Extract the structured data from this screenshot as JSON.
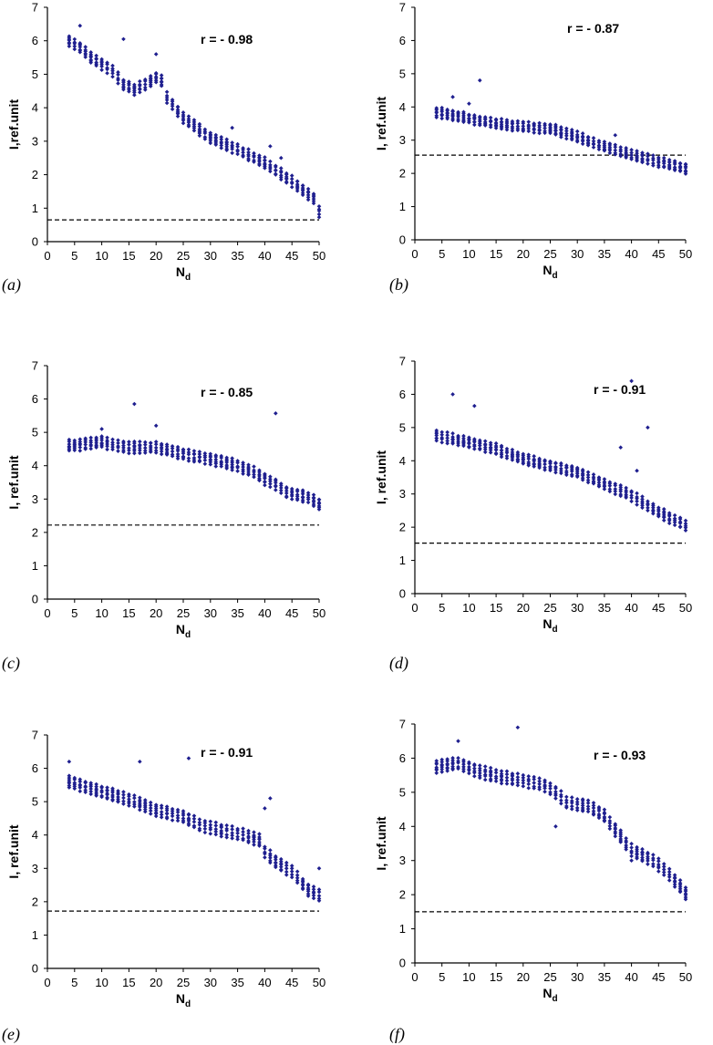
{
  "colors": {
    "marker": "#1F1F8F",
    "axis": "#000000",
    "reference_line": "#000000"
  },
  "chart_data": [
    {
      "panel_label": "(a)",
      "type": "scatter",
      "r_label": "r = - 0.98",
      "xlabel_main": "N",
      "xlabel_sub": "d",
      "ylabel": "I,ref.unit",
      "xlim": [
        0,
        50
      ],
      "ylim": [
        0,
        7
      ],
      "xticks": [
        0,
        5,
        10,
        15,
        20,
        25,
        30,
        35,
        40,
        45,
        50
      ],
      "yticks": [
        0,
        1,
        2,
        3,
        4,
        5,
        6,
        7
      ],
      "reference_y": 0.65,
      "trend": [
        [
          4,
          6.0
        ],
        [
          6,
          5.8
        ],
        [
          8,
          5.5
        ],
        [
          10,
          5.3
        ],
        [
          12,
          5.1
        ],
        [
          14,
          4.7
        ],
        [
          16,
          4.55
        ],
        [
          18,
          4.7
        ],
        [
          20,
          4.9
        ],
        [
          21,
          4.8
        ],
        [
          22,
          4.3
        ],
        [
          25,
          3.7
        ],
        [
          30,
          3.1
        ],
        [
          35,
          2.75
        ],
        [
          40,
          2.35
        ],
        [
          45,
          1.8
        ],
        [
          49,
          1.3
        ],
        [
          50,
          0.9
        ]
      ],
      "spread": 0.15,
      "outliers": [
        [
          6,
          6.45
        ],
        [
          14,
          6.05
        ],
        [
          20,
          5.6
        ],
        [
          34,
          3.4
        ],
        [
          41,
          2.85
        ],
        [
          43,
          2.5
        ]
      ]
    },
    {
      "panel_label": "(b)",
      "type": "scatter",
      "r_label": "r = - 0.87",
      "xlabel_main": "N",
      "xlabel_sub": "d",
      "ylabel": "I, ref.unit",
      "xlim": [
        0,
        50
      ],
      "ylim": [
        0,
        7
      ],
      "xticks": [
        0,
        5,
        10,
        15,
        20,
        25,
        30,
        35,
        40,
        45,
        50
      ],
      "yticks": [
        0,
        1,
        2,
        3,
        4,
        5,
        6,
        7
      ],
      "reference_y": 2.55,
      "trend": [
        [
          4,
          3.85
        ],
        [
          10,
          3.65
        ],
        [
          15,
          3.5
        ],
        [
          20,
          3.4
        ],
        [
          25,
          3.35
        ],
        [
          30,
          3.1
        ],
        [
          35,
          2.8
        ],
        [
          40,
          2.55
        ],
        [
          45,
          2.35
        ],
        [
          50,
          2.15
        ]
      ],
      "spread": 0.14,
      "outliers": [
        [
          12,
          4.8
        ],
        [
          7,
          4.3
        ],
        [
          10,
          4.1
        ],
        [
          37,
          3.15
        ]
      ]
    },
    {
      "panel_label": "(c)",
      "type": "scatter",
      "r_label": "r = - 0.85",
      "xlabel_main": "N",
      "xlabel_sub": "d",
      "ylabel": "I, ref.unit",
      "xlim": [
        0,
        50
      ],
      "ylim": [
        0,
        7
      ],
      "xticks": [
        0,
        5,
        10,
        15,
        20,
        25,
        30,
        35,
        40,
        45,
        50
      ],
      "yticks": [
        0,
        1,
        2,
        3,
        4,
        5,
        6,
        7
      ],
      "reference_y": 2.22,
      "trend": [
        [
          4,
          4.6
        ],
        [
          10,
          4.7
        ],
        [
          15,
          4.55
        ],
        [
          20,
          4.55
        ],
        [
          25,
          4.35
        ],
        [
          30,
          4.2
        ],
        [
          35,
          4.0
        ],
        [
          38,
          3.8
        ],
        [
          40,
          3.6
        ],
        [
          42,
          3.45
        ],
        [
          44,
          3.2
        ],
        [
          48,
          3.05
        ],
        [
          50,
          2.85
        ]
      ],
      "spread": 0.16,
      "outliers": [
        [
          16,
          5.85
        ],
        [
          42,
          5.57
        ],
        [
          20,
          5.2
        ],
        [
          10,
          5.1
        ]
      ]
    },
    {
      "panel_label": "(d)",
      "type": "scatter",
      "r_label": "r = - 0.91",
      "xlabel_main": "N",
      "xlabel_sub": "d",
      "ylabel": "I, ref.unit",
      "xlim": [
        0,
        50
      ],
      "ylim": [
        0,
        7
      ],
      "xticks": [
        0,
        5,
        10,
        15,
        20,
        25,
        30,
        35,
        40,
        45,
        50
      ],
      "yticks": [
        0,
        1,
        2,
        3,
        4,
        5,
        6,
        7
      ],
      "reference_y": 1.52,
      "trend": [
        [
          4,
          4.75
        ],
        [
          10,
          4.55
        ],
        [
          15,
          4.35
        ],
        [
          20,
          4.05
        ],
        [
          25,
          3.85
        ],
        [
          30,
          3.65
        ],
        [
          35,
          3.3
        ],
        [
          40,
          2.95
        ],
        [
          45,
          2.45
        ],
        [
          50,
          2.05
        ]
      ],
      "spread": 0.15,
      "outliers": [
        [
          7,
          6.0
        ],
        [
          11,
          5.65
        ],
        [
          40,
          6.4
        ],
        [
          43,
          5.0
        ],
        [
          38,
          4.4
        ],
        [
          41,
          3.7
        ]
      ]
    },
    {
      "panel_label": "(e)",
      "type": "scatter",
      "r_label": "r = - 0.91",
      "xlabel_main": "N",
      "xlabel_sub": "d",
      "ylabel": "I, ref.unit",
      "xlim": [
        0,
        50
      ],
      "ylim": [
        0,
        7
      ],
      "xticks": [
        0,
        5,
        10,
        15,
        20,
        25,
        30,
        35,
        40,
        45,
        50
      ],
      "yticks": [
        0,
        1,
        2,
        3,
        4,
        5,
        6,
        7
      ],
      "reference_y": 1.72,
      "trend": [
        [
          4,
          5.6
        ],
        [
          8,
          5.4
        ],
        [
          12,
          5.2
        ],
        [
          16,
          5.0
        ],
        [
          20,
          4.75
        ],
        [
          25,
          4.55
        ],
        [
          28,
          4.3
        ],
        [
          32,
          4.15
        ],
        [
          36,
          4.0
        ],
        [
          39,
          3.85
        ],
        [
          40,
          3.5
        ],
        [
          42,
          3.2
        ],
        [
          45,
          2.9
        ],
        [
          48,
          2.35
        ],
        [
          50,
          2.2
        ]
      ],
      "spread": 0.17,
      "outliers": [
        [
          17,
          6.2
        ],
        [
          26,
          6.3
        ],
        [
          41,
          5.1
        ],
        [
          40,
          4.8
        ],
        [
          50,
          3.0
        ],
        [
          4,
          6.2
        ]
      ]
    },
    {
      "panel_label": "(f)",
      "type": "scatter",
      "r_label": "r = - 0.93",
      "xlabel_main": "N",
      "xlabel_sub": "d",
      "ylabel": "I, ref.unit",
      "xlim": [
        0,
        50
      ],
      "ylim": [
        0,
        7
      ],
      "xticks": [
        0,
        5,
        10,
        15,
        20,
        25,
        30,
        35,
        40,
        45,
        50
      ],
      "yticks": [
        0,
        1,
        2,
        3,
        4,
        5,
        6,
        7
      ],
      "reference_y": 1.5,
      "trend": [
        [
          4,
          5.75
        ],
        [
          8,
          5.85
        ],
        [
          12,
          5.6
        ],
        [
          16,
          5.45
        ],
        [
          20,
          5.35
        ],
        [
          24,
          5.2
        ],
        [
          26,
          5.0
        ],
        [
          28,
          4.7
        ],
        [
          32,
          4.6
        ],
        [
          35,
          4.3
        ],
        [
          38,
          3.7
        ],
        [
          40,
          3.3
        ],
        [
          44,
          3.0
        ],
        [
          47,
          2.6
        ],
        [
          50,
          2.05
        ]
      ],
      "spread": 0.17,
      "outliers": [
        [
          19,
          6.9
        ],
        [
          8,
          6.5
        ],
        [
          26,
          4.0
        ],
        [
          40,
          3.0
        ]
      ]
    }
  ]
}
